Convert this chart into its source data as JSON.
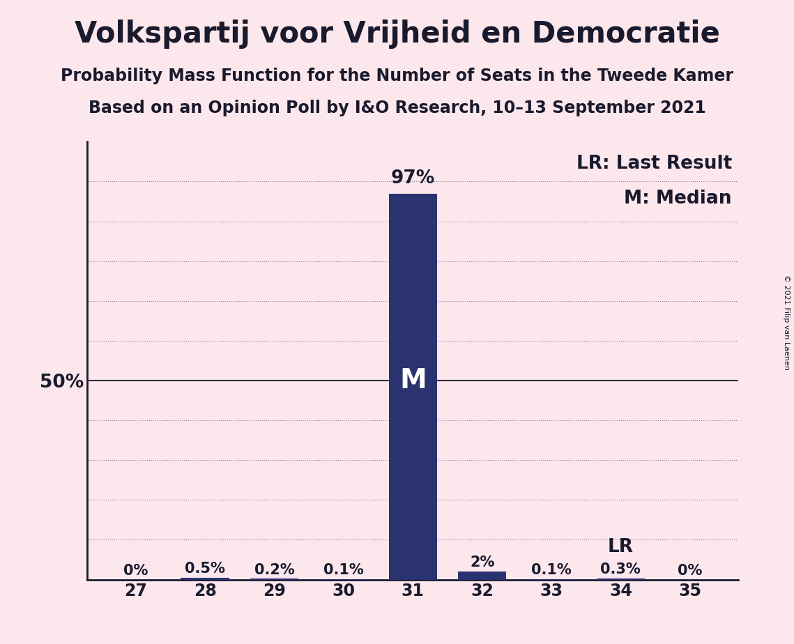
{
  "title": "Volkspartij voor Vrijheid en Democratie",
  "subtitle1": "Probability Mass Function for the Number of Seats in the Tweede Kamer",
  "subtitle2": "Based on an Opinion Poll by I&O Research, 10–13 September 2021",
  "copyright": "© 2021 Filip van Laenen",
  "seats": [
    27,
    28,
    29,
    30,
    31,
    32,
    33,
    34,
    35
  ],
  "probabilities": [
    0.0,
    0.5,
    0.2,
    0.1,
    97.0,
    2.0,
    0.1,
    0.3,
    0.0
  ],
  "labels": [
    "0%",
    "0.5%",
    "0.2%",
    "0.1%",
    "97%",
    "2%",
    "0.1%",
    "0.3%",
    "0%"
  ],
  "bar_color": "#2b3270",
  "background_color": "#fce8ec",
  "text_color": "#1a1a2e",
  "median_seat": 31,
  "lr_seat": 34,
  "legend_lr": "LR: Last Result",
  "legend_m": "M: Median",
  "ylabel_text": "50%",
  "ylabel_value": 50,
  "ylim": [
    0,
    110
  ],
  "yticks": [
    10,
    20,
    30,
    40,
    50,
    60,
    70,
    80,
    90,
    100
  ],
  "grid_color": "#1a1a2e",
  "title_fontsize": 30,
  "subtitle_fontsize": 17,
  "label_fontsize": 15,
  "tick_fontsize": 17,
  "annotation_fontsize": 19,
  "m_fontsize": 28
}
